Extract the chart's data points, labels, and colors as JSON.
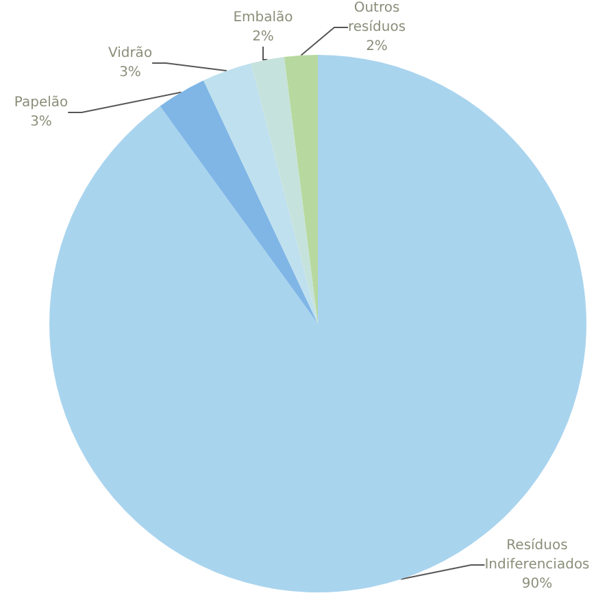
{
  "chart_data": {
    "type": "pie",
    "categories": [
      "Resíduos Indiferenciados",
      "Papelão",
      "Vidrão",
      "Embalão",
      "Outros resíduos"
    ],
    "values": [
      90,
      3,
      3,
      2,
      2
    ],
    "colors": [
      "#a9d4ee",
      "#7fb6e6",
      "#bfe0ee",
      "#c6e2dc",
      "#b7d99f"
    ],
    "value_labels": [
      "90%",
      "3%",
      "3%",
      "2%",
      "2%"
    ]
  }
}
